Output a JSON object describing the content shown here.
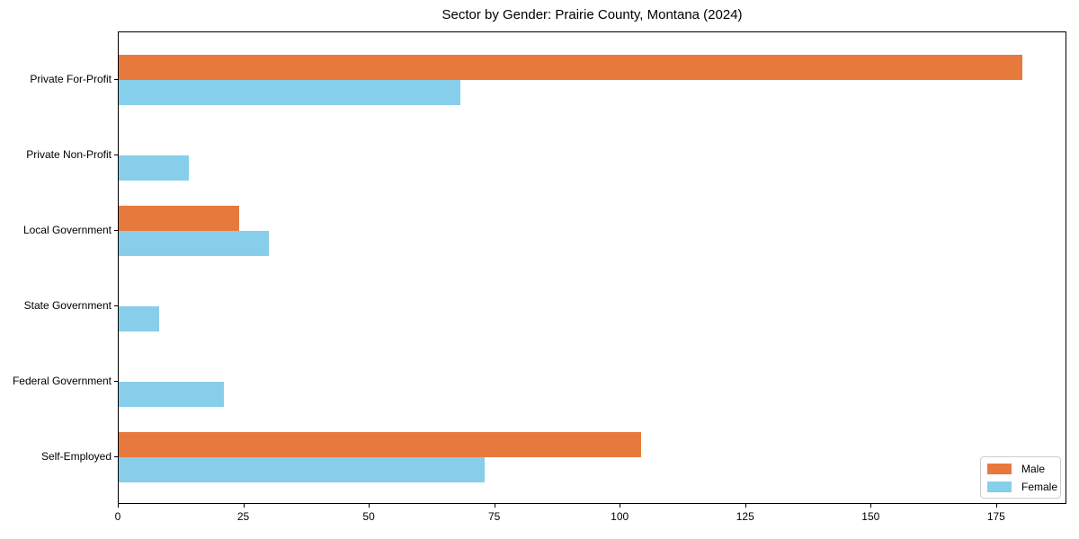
{
  "chart_data": {
    "type": "bar",
    "orientation": "horizontal",
    "title": "Sector by Gender: Prairie County, Montana (2024)",
    "categories": [
      "Private For-Profit",
      "Private Non-Profit",
      "Local Government",
      "State Government",
      "Federal Government",
      "Self-Employed"
    ],
    "series": [
      {
        "name": "Male",
        "color": "#e8793d",
        "values": [
          180,
          0,
          24,
          0,
          0,
          104
        ]
      },
      {
        "name": "Female",
        "color": "#87ceeb",
        "values": [
          68,
          14,
          30,
          8,
          21,
          73
        ]
      }
    ],
    "xlabel": "",
    "ylabel": "",
    "xlim": [
      0,
      189
    ],
    "xticks": [
      0,
      25,
      50,
      75,
      100,
      125,
      150,
      175
    ],
    "grid": false,
    "legend_position": "lower right",
    "background_color": "#ffffff",
    "axis_color": "#000000",
    "text_color": "#000000"
  }
}
